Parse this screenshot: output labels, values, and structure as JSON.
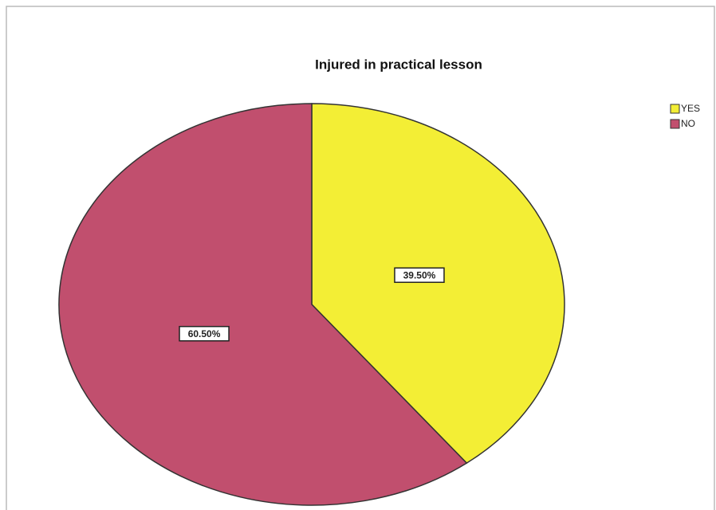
{
  "chart_data": {
    "type": "pie",
    "title": "Injured in practical lesson",
    "categories": [
      "YES",
      "NO"
    ],
    "values": [
      39.5,
      60.5
    ],
    "value_labels": [
      "39.50%",
      "60.50%"
    ],
    "colors": [
      "#f3ee35",
      "#c14f6e"
    ],
    "legend": "top-right"
  }
}
